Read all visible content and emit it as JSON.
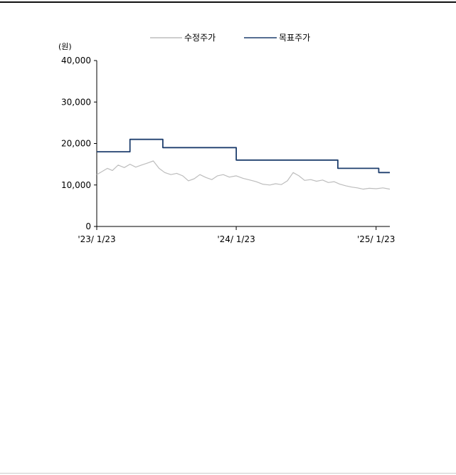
{
  "chart_data": {
    "type": "line",
    "unit_label": "(원)",
    "ylim": [
      0,
      40000
    ],
    "y_ticks": [
      0,
      10000,
      20000,
      30000,
      40000
    ],
    "y_tick_labels": [
      "0",
      "10,000",
      "20,000",
      "30,000",
      "40,000"
    ],
    "x_tick_labels": [
      "'23/ 1/23",
      "'24/ 1/23",
      "'25/ 1/23"
    ],
    "x_range": [
      "2023-01-23",
      "2025-02-28"
    ],
    "x_ticks": [
      "2023-01-23",
      "2024-01-23",
      "2025-01-23"
    ],
    "grid": false,
    "legend_position": "top",
    "series": [
      {
        "name": "수정주가",
        "color": "#bdbdbd",
        "style": "line",
        "points": [
          [
            "2023-01-23",
            12500
          ],
          [
            "2023-02-05",
            13200
          ],
          [
            "2023-02-20",
            14000
          ],
          [
            "2023-03-05",
            13500
          ],
          [
            "2023-03-20",
            14800
          ],
          [
            "2023-04-05",
            14200
          ],
          [
            "2023-04-20",
            15000
          ],
          [
            "2023-05-05",
            14300
          ],
          [
            "2023-05-20",
            14800
          ],
          [
            "2023-06-05",
            15300
          ],
          [
            "2023-06-20",
            15800
          ],
          [
            "2023-07-05",
            14000
          ],
          [
            "2023-07-20",
            13000
          ],
          [
            "2023-08-05",
            12500
          ],
          [
            "2023-08-20",
            12800
          ],
          [
            "2023-09-05",
            12200
          ],
          [
            "2023-09-20",
            11000
          ],
          [
            "2023-10-05",
            11500
          ],
          [
            "2023-10-20",
            12500
          ],
          [
            "2023-11-05",
            11800
          ],
          [
            "2023-11-20",
            11300
          ],
          [
            "2023-12-05",
            12200
          ],
          [
            "2023-12-20",
            12500
          ],
          [
            "2024-01-05",
            11900
          ],
          [
            "2024-01-23",
            12200
          ],
          [
            "2024-02-10",
            11600
          ],
          [
            "2024-02-28",
            11200
          ],
          [
            "2024-03-15",
            10800
          ],
          [
            "2024-04-01",
            10200
          ],
          [
            "2024-04-20",
            10000
          ],
          [
            "2024-05-05",
            10300
          ],
          [
            "2024-05-20",
            10100
          ],
          [
            "2024-06-05",
            11000
          ],
          [
            "2024-06-20",
            13000
          ],
          [
            "2024-07-05",
            12200
          ],
          [
            "2024-07-20",
            11100
          ],
          [
            "2024-08-05",
            11300
          ],
          [
            "2024-08-20",
            10900
          ],
          [
            "2024-09-05",
            11200
          ],
          [
            "2024-09-20",
            10600
          ],
          [
            "2024-10-05",
            10800
          ],
          [
            "2024-10-20",
            10200
          ],
          [
            "2024-11-05",
            9800
          ],
          [
            "2024-11-20",
            9500
          ],
          [
            "2024-12-05",
            9300
          ],
          [
            "2024-12-20",
            9000
          ],
          [
            "2025-01-05",
            9200
          ],
          [
            "2025-01-23",
            9100
          ],
          [
            "2025-02-10",
            9300
          ],
          [
            "2025-02-28",
            9000
          ]
        ]
      },
      {
        "name": "목표주가",
        "color": "#1f3f6e",
        "style": "step",
        "steps": [
          [
            "2023-01-23",
            18000
          ],
          [
            "2023-04-20",
            21000
          ],
          [
            "2023-07-15",
            19000
          ],
          [
            "2024-01-23",
            16000
          ],
          [
            "2024-10-15",
            14000
          ],
          [
            "2025-01-30",
            13000
          ],
          [
            "2025-02-28",
            13000
          ]
        ]
      }
    ]
  }
}
